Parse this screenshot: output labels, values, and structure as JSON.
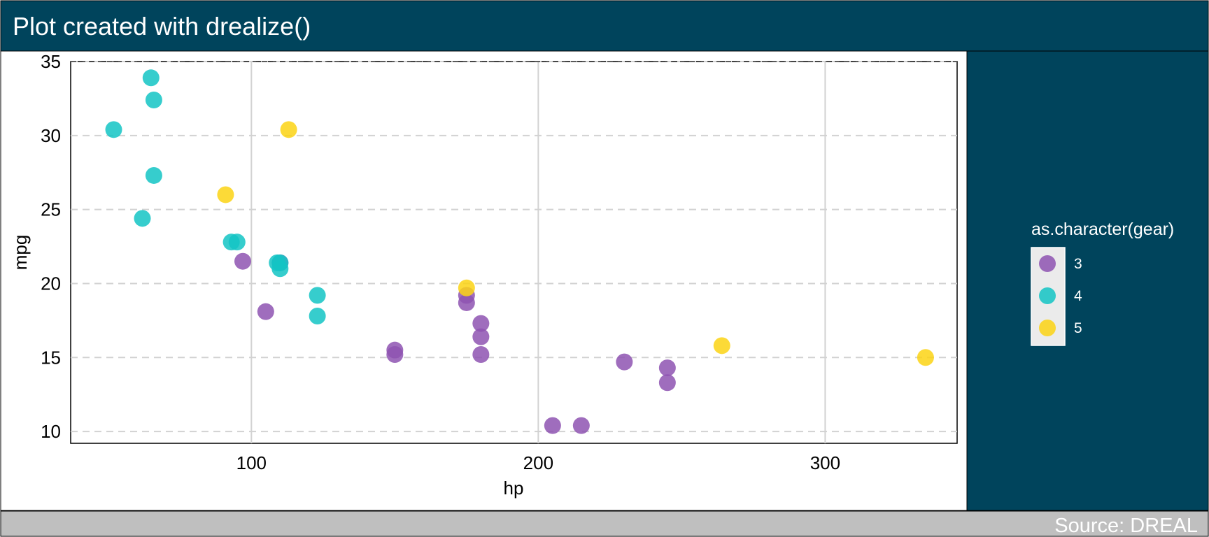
{
  "header": {
    "title": "Plot created with drealize()"
  },
  "footer": {
    "source": "Source: DREAL"
  },
  "colors": {
    "header_bg": "#00445C",
    "panel_right_bg": "#00445C",
    "footer_bg": "#BFBFBF",
    "gear3": "#8E53B2",
    "gear4": "#13C4C4",
    "gear5": "#FCD414",
    "grid": "#D2D2D2"
  },
  "chart_data": {
    "type": "scatter",
    "title": "Plot created with drealize()",
    "xlabel": "hp",
    "ylabel": "mpg",
    "xlim": [
      37,
      346
    ],
    "ylim": [
      9.2,
      35
    ],
    "x_ticks": [
      100,
      200,
      300
    ],
    "y_ticks": [
      10,
      15,
      20,
      25,
      30,
      35
    ],
    "grid": true,
    "legend": {
      "title": "as.character(gear)",
      "position": "right",
      "entries": [
        "3",
        "4",
        "5"
      ]
    },
    "series": [
      {
        "name": "3",
        "points": [
          {
            "x": 110,
            "y": 21.4
          },
          {
            "x": 175,
            "y": 18.7
          },
          {
            "x": 105,
            "y": 18.1
          },
          {
            "x": 245,
            "y": 14.3
          },
          {
            "x": 180,
            "y": 16.4
          },
          {
            "x": 180,
            "y": 17.3
          },
          {
            "x": 180,
            "y": 15.2
          },
          {
            "x": 205,
            "y": 10.4
          },
          {
            "x": 215,
            "y": 10.4
          },
          {
            "x": 230,
            "y": 14.7
          },
          {
            "x": 97,
            "y": 21.5
          },
          {
            "x": 150,
            "y": 15.5
          },
          {
            "x": 150,
            "y": 15.2
          },
          {
            "x": 245,
            "y": 13.3
          },
          {
            "x": 175,
            "y": 19.2
          }
        ]
      },
      {
        "name": "4",
        "points": [
          {
            "x": 110,
            "y": 21.0
          },
          {
            "x": 110,
            "y": 21.4
          },
          {
            "x": 93,
            "y": 22.8
          },
          {
            "x": 62,
            "y": 24.4
          },
          {
            "x": 95,
            "y": 22.8
          },
          {
            "x": 123,
            "y": 19.2
          },
          {
            "x": 123,
            "y": 17.8
          },
          {
            "x": 66,
            "y": 32.4
          },
          {
            "x": 52,
            "y": 30.4
          },
          {
            "x": 65,
            "y": 33.9
          },
          {
            "x": 66,
            "y": 27.3
          },
          {
            "x": 109,
            "y": 21.4
          }
        ]
      },
      {
        "name": "5",
        "points": [
          {
            "x": 91,
            "y": 26.0
          },
          {
            "x": 113,
            "y": 30.4
          },
          {
            "x": 264,
            "y": 15.8
          },
          {
            "x": 175,
            "y": 19.7
          },
          {
            "x": 335,
            "y": 15.0
          }
        ]
      }
    ]
  }
}
